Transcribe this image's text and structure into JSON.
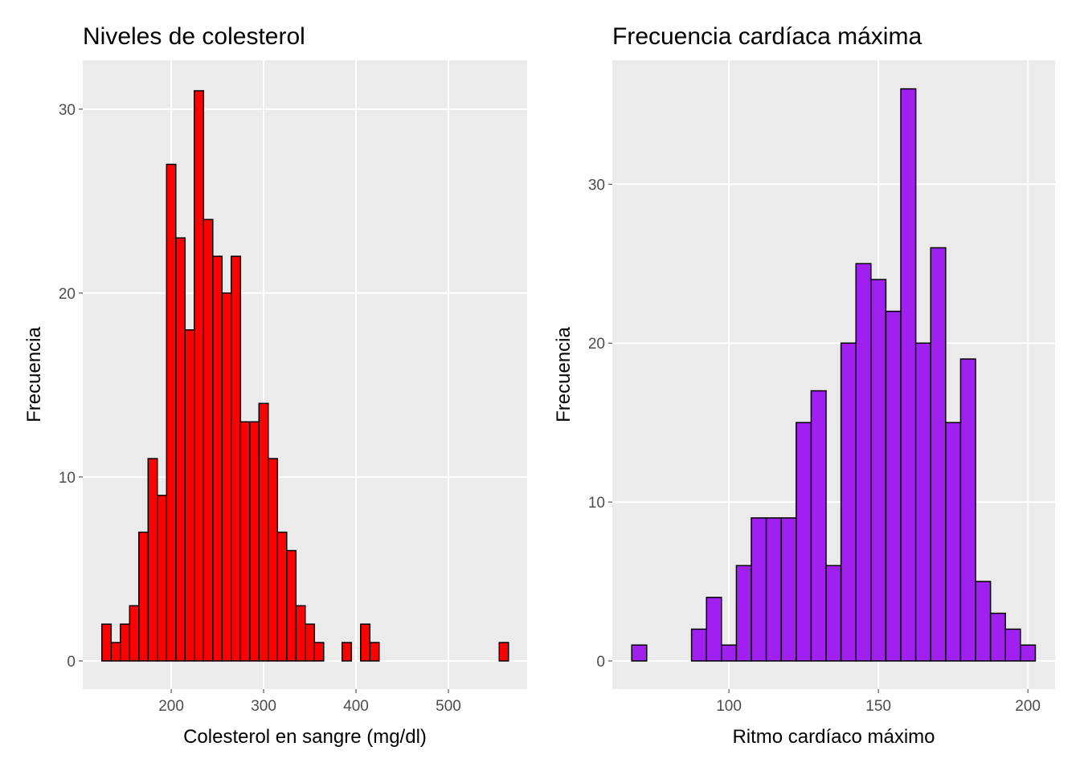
{
  "chart_data": [
    {
      "type": "histogram",
      "title": "Niveles de colesterol",
      "x_label": "Colesterol en sangre (mg/dl)",
      "y_label": "Frecuencia",
      "bins": [
        125,
        135,
        145,
        155,
        165,
        175,
        185,
        195,
        205,
        215,
        225,
        235,
        245,
        255,
        265,
        275,
        285,
        295,
        305,
        315,
        325,
        335,
        345,
        355,
        365,
        375,
        385,
        395,
        405,
        415,
        425,
        435,
        445,
        455,
        465,
        475,
        485,
        495,
        505,
        515,
        525,
        535,
        545,
        555,
        565
      ],
      "counts": [
        2,
        1,
        2,
        3,
        7,
        11,
        9,
        27,
        23,
        18,
        31,
        24,
        22,
        20,
        22,
        13,
        13,
        14,
        11,
        7,
        6,
        3,
        2,
        1,
        0,
        0,
        1,
        0,
        2,
        1,
        0,
        0,
        0,
        0,
        0,
        0,
        0,
        0,
        0,
        0,
        0,
        0,
        0,
        1
      ],
      "color": "#ff0000",
      "edgecolor": "#000000",
      "xlim": [
        104.3,
        585.2
      ],
      "ylim": [
        -1.53,
        32.66
      ],
      "xticks": [
        200,
        300,
        400,
        500
      ],
      "yticks": [
        0,
        10,
        20,
        30
      ],
      "grid": true
    },
    {
      "type": "histogram",
      "title": "Frecuencia cardíaca máxima",
      "x_label": "Ritmo cardíaco máximo",
      "y_label": "Frecuencia",
      "bins": [
        67.5,
        72.5,
        77.5,
        82.5,
        87.5,
        92.5,
        97.5,
        102.5,
        107.5,
        112.5,
        117.5,
        122.5,
        127.5,
        132.5,
        137.5,
        142.5,
        147.5,
        152.5,
        157.5,
        162.5,
        167.5,
        172.5,
        177.5,
        182.5,
        187.5,
        192.5,
        197.5,
        202.5
      ],
      "counts": [
        1,
        0,
        0,
        0,
        2,
        4,
        1,
        6,
        9,
        9,
        9,
        15,
        17,
        6,
        20,
        25,
        24,
        22,
        36,
        20,
        26,
        15,
        19,
        5,
        3,
        2,
        1
      ],
      "color": "#a020f0",
      "edgecolor": "#000000",
      "xlim": [
        61,
        209.1
      ],
      "ylim": [
        -1.77,
        37.8
      ],
      "xticks": [
        100,
        150,
        200
      ],
      "yticks": [
        0,
        10,
        20,
        30
      ],
      "grid": true
    }
  ]
}
